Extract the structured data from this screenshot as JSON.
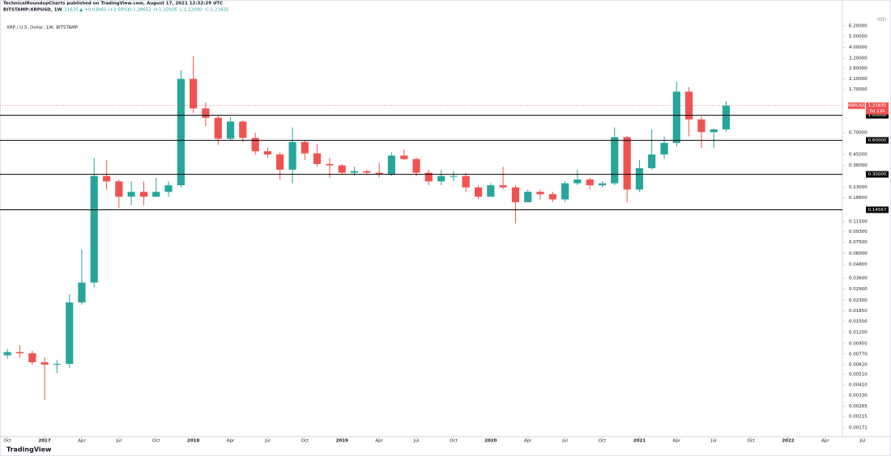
{
  "header": {
    "publisher": "TechnicalRoundupCharts published on TradingView.com, August 17, 2021 12:32:29 UTC",
    "symbol": "BITSTAMP:XRPUSD, 1W",
    "last": "1.21635",
    "change": "▲ +0.03065 (+2.58%)",
    "open": "O:1.28652",
    "high": "H:1.32926",
    "low": "L:1.12000",
    "close": "C:1.21635"
  },
  "footer": {
    "logo": "TradingView"
  },
  "chart_data": {
    "type": "candlestick",
    "title": "XRP / U.S. Dollar, 1W, BITSTAMP",
    "log_scale": true,
    "up_color": "#26a69a",
    "down_color": "#ef5350",
    "currency": "USD",
    "x": [
      2016.75,
      2016.833,
      2016.917,
      2017,
      2017.083,
      2017.167,
      2017.25,
      2017.333,
      2017.417,
      2017.5,
      2017.583,
      2017.667,
      2017.75,
      2017.833,
      2017.917,
      2018,
      2018.083,
      2018.167,
      2018.25,
      2018.333,
      2018.417,
      2018.5,
      2018.583,
      2018.667,
      2018.75,
      2018.833,
      2018.917,
      2019,
      2019.083,
      2019.167,
      2019.25,
      2019.333,
      2019.417,
      2019.5,
      2019.583,
      2019.667,
      2019.75,
      2019.833,
      2019.917,
      2020,
      2020.083,
      2020.167,
      2020.25,
      2020.333,
      2020.417,
      2020.5,
      2020.583,
      2020.667,
      2020.75,
      2020.833,
      2020.917,
      2021,
      2021.083,
      2021.167,
      2021.25,
      2021.333,
      2021.417,
      2021.5,
      2021.583
    ],
    "open": [
      0.0075,
      0.008,
      0.0078,
      0.0065,
      0.0062,
      0.0063,
      0.022,
      0.033,
      0.29,
      0.26,
      0.19,
      0.21,
      0.19,
      0.21,
      0.24,
      2.1,
      1.15,
      0.95,
      0.62,
      0.88,
      0.63,
      0.48,
      0.45,
      0.33,
      0.58,
      0.46,
      0.37,
      0.36,
      0.31,
      0.32,
      0.31,
      0.3,
      0.44,
      0.41,
      0.31,
      0.26,
      0.29,
      0.29,
      0.23,
      0.19,
      0.24,
      0.23,
      0.17,
      0.21,
      0.2,
      0.18,
      0.25,
      0.27,
      0.24,
      0.25,
      0.64,
      0.22,
      0.34,
      0.45,
      0.57,
      1.62,
      0.92,
      0.71,
      0.75
    ],
    "high": [
      0.0085,
      0.0092,
      0.0082,
      0.0072,
      0.0068,
      0.026,
      0.065,
      0.42,
      0.4,
      0.27,
      0.26,
      0.26,
      0.28,
      0.26,
      2.5,
      3.35,
      1.3,
      1.0,
      0.96,
      0.9,
      0.7,
      0.52,
      0.47,
      0.78,
      0.6,
      0.56,
      0.42,
      0.37,
      0.35,
      0.33,
      0.38,
      0.47,
      0.5,
      0.42,
      0.33,
      0.33,
      0.32,
      0.31,
      0.24,
      0.25,
      0.35,
      0.24,
      0.22,
      0.22,
      0.21,
      0.26,
      0.33,
      0.28,
      0.26,
      0.78,
      0.66,
      0.4,
      0.75,
      0.65,
      1.98,
      1.78,
      0.98,
      0.76,
      1.33
    ],
    "low": [
      0.007,
      0.0072,
      0.0062,
      0.003,
      0.0052,
      0.0058,
      0.021,
      0.03,
      0.22,
      0.15,
      0.16,
      0.16,
      0.19,
      0.19,
      0.23,
      1.05,
      0.8,
      0.55,
      0.6,
      0.58,
      0.45,
      0.42,
      0.27,
      0.25,
      0.4,
      0.35,
      0.28,
      0.3,
      0.29,
      0.3,
      0.28,
      0.29,
      0.4,
      0.29,
      0.24,
      0.24,
      0.26,
      0.21,
      0.18,
      0.19,
      0.22,
      0.11,
      0.17,
      0.18,
      0.17,
      0.17,
      0.24,
      0.22,
      0.23,
      0.24,
      0.17,
      0.21,
      0.33,
      0.41,
      0.53,
      0.65,
      0.51,
      0.51,
      0.72
    ],
    "close": [
      0.008,
      0.0078,
      0.0065,
      0.0062,
      0.0063,
      0.022,
      0.033,
      0.29,
      0.26,
      0.19,
      0.21,
      0.19,
      0.21,
      0.24,
      2.1,
      1.15,
      0.95,
      0.62,
      0.88,
      0.63,
      0.48,
      0.45,
      0.33,
      0.58,
      0.46,
      0.37,
      0.36,
      0.31,
      0.32,
      0.31,
      0.3,
      0.44,
      0.41,
      0.31,
      0.26,
      0.29,
      0.29,
      0.23,
      0.19,
      0.24,
      0.23,
      0.17,
      0.21,
      0.2,
      0.18,
      0.25,
      0.27,
      0.24,
      0.25,
      0.64,
      0.22,
      0.34,
      0.45,
      0.57,
      1.62,
      0.92,
      0.71,
      0.75,
      1.22
    ],
    "xlim": [
      2016.7,
      2022.365
    ],
    "xticks": [
      {
        "value": 2016.75,
        "label": "Oct"
      },
      2017,
      {
        "value": 2017.25,
        "label": "Apr"
      },
      {
        "value": 2017.5,
        "label": "Jul"
      },
      {
        "value": 2017.75,
        "label": "Oct"
      },
      2018,
      {
        "value": 2018.25,
        "label": "Apr"
      },
      {
        "value": 2018.5,
        "label": "Jul"
      },
      {
        "value": 2018.75,
        "label": "Oct"
      },
      2019,
      {
        "value": 2019.25,
        "label": "Apr"
      },
      {
        "value": 2019.5,
        "label": "Jul"
      },
      {
        "value": 2019.75,
        "label": "Oct"
      },
      2020,
      {
        "value": 2020.25,
        "label": "Apr"
      },
      {
        "value": 2020.5,
        "label": "Jul"
      },
      {
        "value": 2020.75,
        "label": "Oct"
      },
      2021,
      {
        "value": 2021.25,
        "label": "Apr"
      },
      {
        "value": 2021.5,
        "label": "Jul"
      },
      {
        "value": 2021.75,
        "label": "Oct"
      },
      2022,
      {
        "value": 2022.25,
        "label": "Apr"
      },
      {
        "value": 2022.5,
        "label": "Jul"
      }
    ],
    "ylim": [
      0.0015,
      9.2
    ],
    "yticks": [
      {
        "value": 6.2,
        "label": "6.20000"
      },
      {
        "value": 5,
        "label": "5.00000"
      },
      {
        "value": 4,
        "label": "4.00000"
      },
      {
        "value": 3.2,
        "label": "3.20000"
      },
      {
        "value": 2.6,
        "label": "2.60000"
      },
      {
        "value": 2.1,
        "label": "2.10000"
      },
      {
        "value": 1.7,
        "label": "1.70000"
      },
      {
        "value": 0.7,
        "label": "0.70000"
      },
      {
        "value": 0.45,
        "label": "0.45000"
      },
      {
        "value": 0.36,
        "label": "0.36000"
      },
      {
        "value": 0.23,
        "label": "0.23000"
      },
      {
        "value": 0.186,
        "label": "0.18600"
      },
      {
        "value": 0.115,
        "label": "0.11500"
      },
      {
        "value": 0.093,
        "label": "0.09300"
      },
      {
        "value": 0.075,
        "label": "0.07500"
      },
      {
        "value": 0.06,
        "label": "0.06000"
      },
      {
        "value": 0.048,
        "label": "0.04800"
      },
      {
        "value": 0.036,
        "label": "0.03600"
      },
      {
        "value": 0.029,
        "label": "0.02900"
      },
      {
        "value": 0.023,
        "label": "0.02300"
      },
      {
        "value": 0.0185,
        "label": "0.01850"
      },
      {
        "value": 0.015,
        "label": "0.01500"
      },
      {
        "value": 0.012,
        "label": "0.01200"
      },
      {
        "value": 0.0095,
        "label": "0.00950"
      },
      {
        "value": 0.0077,
        "label": "0.00770"
      },
      {
        "value": 0.0062,
        "label": "0.00620"
      },
      {
        "value": 0.0051,
        "label": "0.00510"
      },
      {
        "value": 0.0041,
        "label": "0.00410"
      },
      {
        "value": 0.0033,
        "label": "0.00330"
      },
      {
        "value": 0.00265,
        "label": "0.00265"
      },
      {
        "value": 0.00215,
        "label": "0.00215"
      },
      {
        "value": 0.00171,
        "label": "0.00171"
      }
    ],
    "levels": [
      {
        "value": 1,
        "label": "1.00000"
      },
      {
        "value": 0.6,
        "label": "0.60000"
      },
      {
        "value": 0.3,
        "label": "0.30000"
      },
      {
        "value": 0.14567,
        "label": "0.14567"
      }
    ],
    "last_price": {
      "symbol": "XRPUSD",
      "value": 1.21635,
      "label": "1.21635",
      "countdown": "5d 12h"
    }
  }
}
